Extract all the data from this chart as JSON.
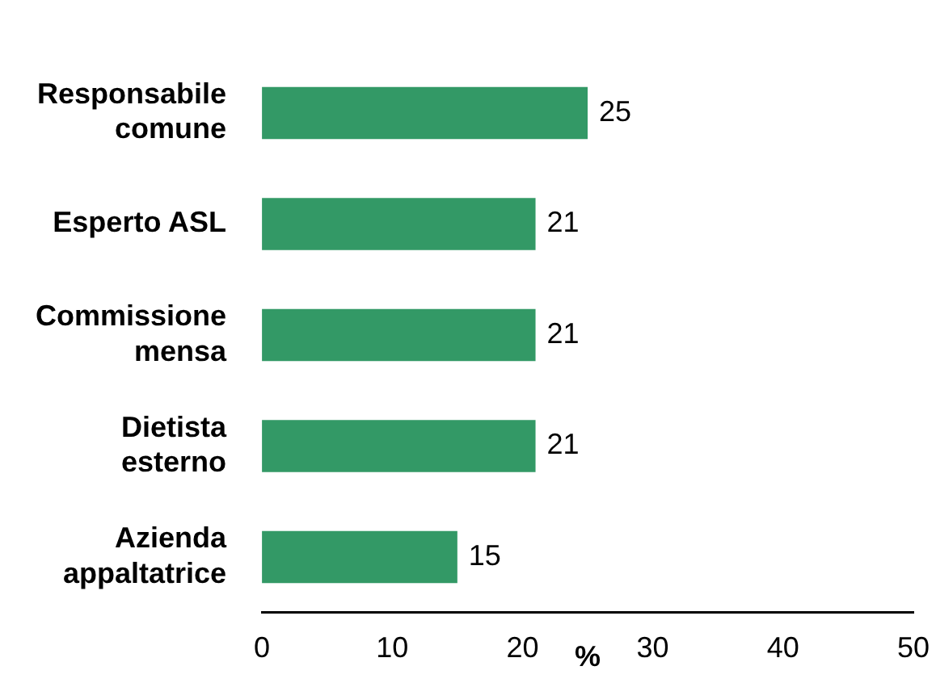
{
  "chart_data": {
    "type": "bar",
    "orientation": "horizontal",
    "xlabel": "%",
    "categories": [
      "Responsabile comune",
      "Esperto ASL",
      "Commissione mensa",
      "Dietista esterno",
      "Azienda appaltatrice"
    ],
    "values": [
      25,
      21,
      21,
      21,
      15
    ],
    "color": "#339966",
    "xlim": [
      0,
      50
    ],
    "xticks": [
      0,
      10,
      20,
      30,
      40,
      50
    ],
    "grid": false,
    "legend": false,
    "data_labels": true
  }
}
